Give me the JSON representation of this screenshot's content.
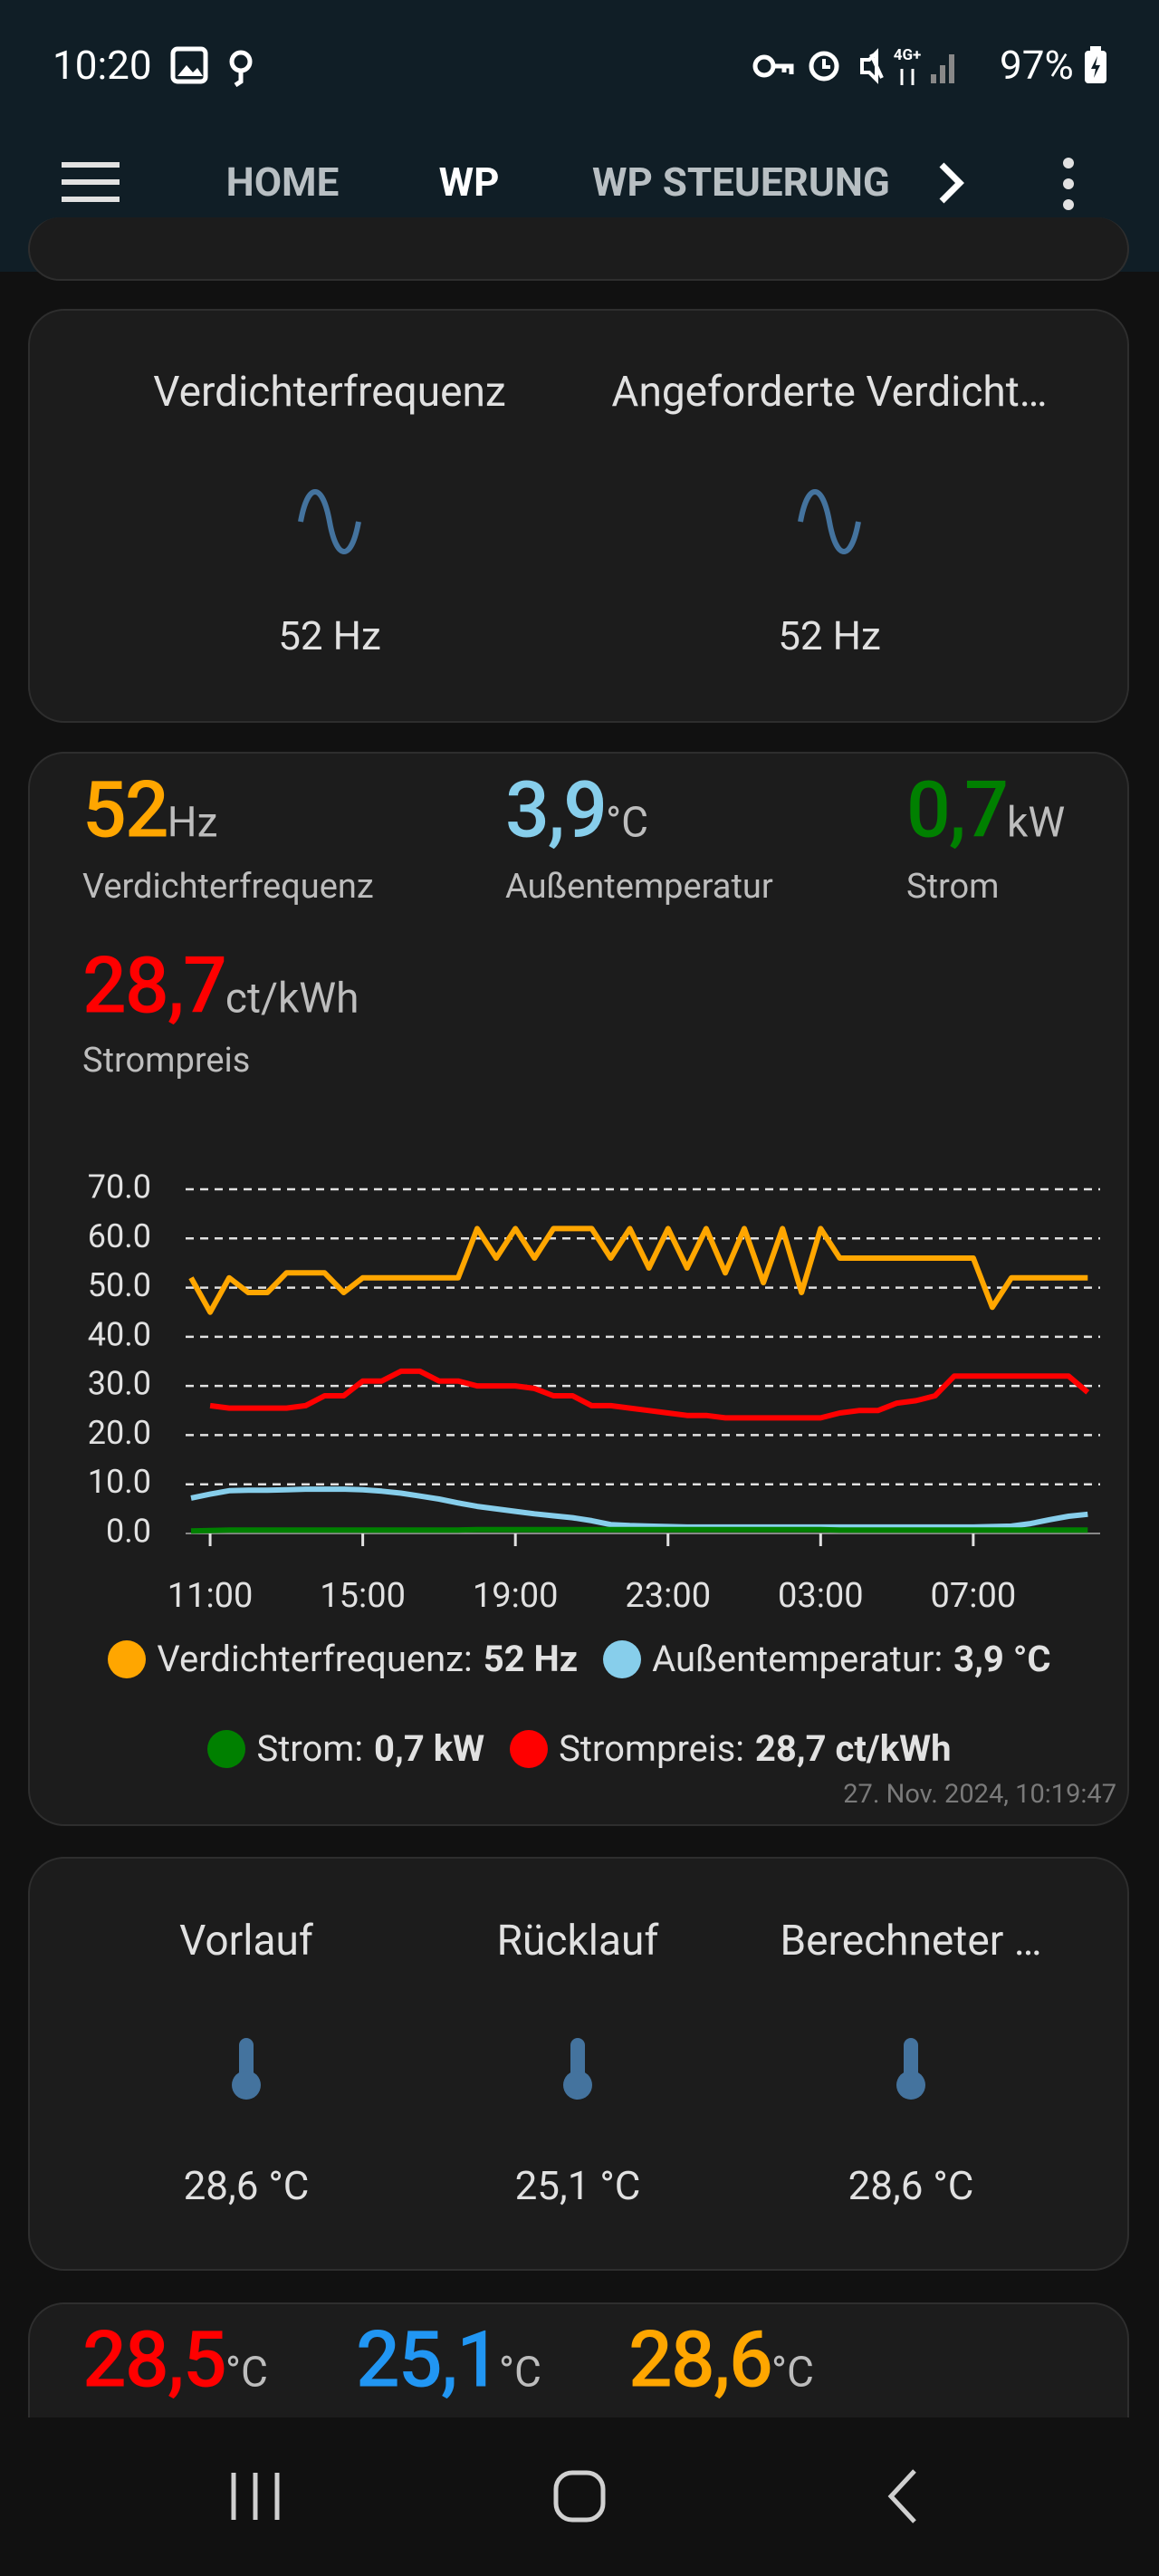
{
  "status_bar": {
    "time": "10:20",
    "network": "4G+",
    "battery": "97%"
  },
  "tabs": [
    "HOME",
    "WP",
    "WP STEUERUNG"
  ],
  "card_entities": [
    {
      "name": "Verdichterfrequenz",
      "state": "52 Hz"
    },
    {
      "name": "Angeforderte Verdicht…",
      "state": "52 Hz"
    }
  ],
  "sensor_card": {
    "sensors": [
      {
        "value": "52",
        "unit": "Hz",
        "name": "Verdichterfrequenz",
        "color": "#ffa600"
      },
      {
        "value": "3,9",
        "unit": "°C",
        "name": "Außentemperatur",
        "color": "#87ceeb"
      },
      {
        "value": "0,7",
        "unit": "kW",
        "name": "Strom",
        "color": "#008000"
      },
      {
        "value": "28,7",
        "unit": "ct/kWh",
        "name": "Strompreis",
        "color": "#ff0000"
      }
    ],
    "timestamp": "27. Nov. 2024, 10:19:47"
  },
  "chart_data": {
    "type": "line",
    "categories": [
      null,
      "11:00",
      null,
      null,
      null,
      null,
      null,
      null,
      null,
      "15:00",
      null,
      null,
      null,
      null,
      null,
      null,
      null,
      "19:00",
      null,
      null,
      null,
      null,
      null,
      null,
      null,
      "23:00",
      null,
      null,
      null,
      null,
      null,
      null,
      null,
      "03:00",
      null,
      null,
      null,
      null,
      null,
      null,
      null,
      "07:00",
      null,
      null,
      null,
      null,
      null,
      null
    ],
    "series": [
      {
        "name": "Verdichterfrequenz",
        "state": "52 Hz",
        "color": "#ffa600",
        "values": [
          52,
          45,
          52,
          49,
          49,
          53,
          53,
          53,
          49,
          52,
          52,
          52,
          52,
          52,
          52,
          62,
          56,
          62,
          56,
          62,
          62,
          62,
          56,
          62,
          54,
          62,
          54,
          62,
          53,
          62,
          51,
          62,
          49,
          62,
          56,
          56,
          56,
          56,
          56,
          56,
          56,
          56,
          46,
          52,
          52,
          52,
          52,
          52
        ]
      },
      {
        "name": "Außentemperatur",
        "state": "3,9 °C",
        "color": "#87ceeb",
        "values": [
          7.2,
          8,
          8.7,
          8.8,
          8.8,
          8.9,
          9,
          9,
          9,
          8.9,
          8.6,
          8.2,
          7.6,
          7,
          6.2,
          5.5,
          5,
          4.5,
          4,
          3.6,
          3.2,
          2.6,
          1.8,
          1.6,
          1.5,
          1.4,
          1.3,
          1.3,
          1.3,
          1.3,
          1.3,
          1.3,
          1.3,
          1.3,
          1.3,
          1.3,
          1.3,
          1.3,
          1.3,
          1.3,
          1.3,
          1.3,
          1.4,
          1.5,
          2,
          2.8,
          3.5,
          3.9
        ]
      },
      {
        "name": "Strom",
        "state": "0,7 kW",
        "color": "#008000",
        "values": [
          0.5,
          0.6,
          0.7,
          0.7,
          0.7,
          0.7,
          0.7,
          0.7,
          0.7,
          0.7,
          0.7,
          0.7,
          0.7,
          0.7,
          0.7,
          0.8,
          0.8,
          0.8,
          0.8,
          0.8,
          0.8,
          0.8,
          0.8,
          0.8,
          0.8,
          0.8,
          0.8,
          0.8,
          0.8,
          0.8,
          0.8,
          0.8,
          0.8,
          0.8,
          0.7,
          0.7,
          0.7,
          0.7,
          0.7,
          0.7,
          0.7,
          0.7,
          0.7,
          0.7,
          0.7,
          0.7,
          0.7,
          0.7
        ]
      },
      {
        "name": "Strompreis",
        "state": "28,7 ct/kWh",
        "color": "#ff0000",
        "values": [
          null,
          26,
          25.5,
          25.5,
          25.5,
          25.5,
          26,
          28,
          28,
          31,
          31,
          33,
          33,
          31,
          31,
          30,
          30,
          30,
          29.5,
          28,
          28,
          26,
          26,
          25.5,
          25,
          24.5,
          24,
          24,
          23.5,
          23.5,
          23.5,
          23.5,
          23.5,
          23.5,
          24.5,
          25,
          25,
          26.5,
          27,
          28,
          32,
          32,
          32,
          32,
          32,
          32,
          32,
          28.7
        ]
      }
    ],
    "ylim": [
      0,
      70
    ],
    "yticks": [
      {
        "value": 0,
        "label": "0.0"
      },
      {
        "value": 10,
        "label": "10.0"
      },
      {
        "value": 20,
        "label": "20.0"
      },
      {
        "value": 30,
        "label": "30.0"
      },
      {
        "value": 40,
        "label": "40.0"
      },
      {
        "value": 50,
        "label": "50.0"
      },
      {
        "value": 60,
        "label": "60.0"
      },
      {
        "value": 70,
        "label": "70.0"
      }
    ],
    "grid": true
  },
  "temp_card": [
    {
      "name": "Vorlauf",
      "state": "28,6 °C"
    },
    {
      "name": "Rücklauf",
      "state": "25,1 °C"
    },
    {
      "name": "Berechneter …",
      "state": "28,6 °C"
    }
  ],
  "bottom_card": [
    {
      "value": "28,5",
      "unit": "°C",
      "color": "#ff0000"
    },
    {
      "value": "25,1",
      "unit": "°C",
      "color": "#2196f3"
    },
    {
      "value": "28,6",
      "unit": "°C",
      "color": "#ffa600"
    }
  ]
}
